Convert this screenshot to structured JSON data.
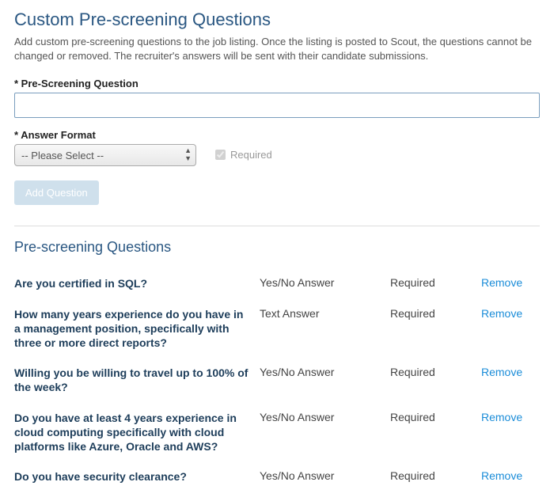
{
  "header": {
    "title": "Custom Pre-screening Questions",
    "description": "Add custom pre-screening questions to the job listing. Once the listing is posted to Scout, the questions cannot be changed or removed. The recruiter's answers will be sent with their candidate submissions."
  },
  "form": {
    "question_label": "* Pre-Screening Question",
    "question_value": "",
    "format_label": "* Answer Format",
    "format_placeholder": "-- Please Select --",
    "required_label": "Required",
    "required_checked": true,
    "add_button": "Add Question"
  },
  "list": {
    "title": "Pre-screening Questions",
    "remove_label": "Remove",
    "questions": [
      {
        "text": "Are you certified in SQL?",
        "format": "Yes/No Answer",
        "required": "Required"
      },
      {
        "text": "How many years experience do you have in a management position, specifically with three or more direct reports?",
        "format": "Text Answer",
        "required": "Required"
      },
      {
        "text": "Willing you be willing to travel up to 100% of the week?",
        "format": "Yes/No Answer",
        "required": "Required"
      },
      {
        "text": "Do you have at least 4 years experience in cloud computing specifically with cloud platforms like Azure, Oracle and AWS?",
        "format": "Yes/No Answer",
        "required": "Required"
      },
      {
        "text": "Do you have security clearance?",
        "format": "Yes/No Answer",
        "required": "Required"
      }
    ]
  },
  "colors": {
    "heading": "#2a5782",
    "link": "#1a8cd8",
    "question_text": "#1d3d5a",
    "button_bg": "#cfe0ec"
  }
}
